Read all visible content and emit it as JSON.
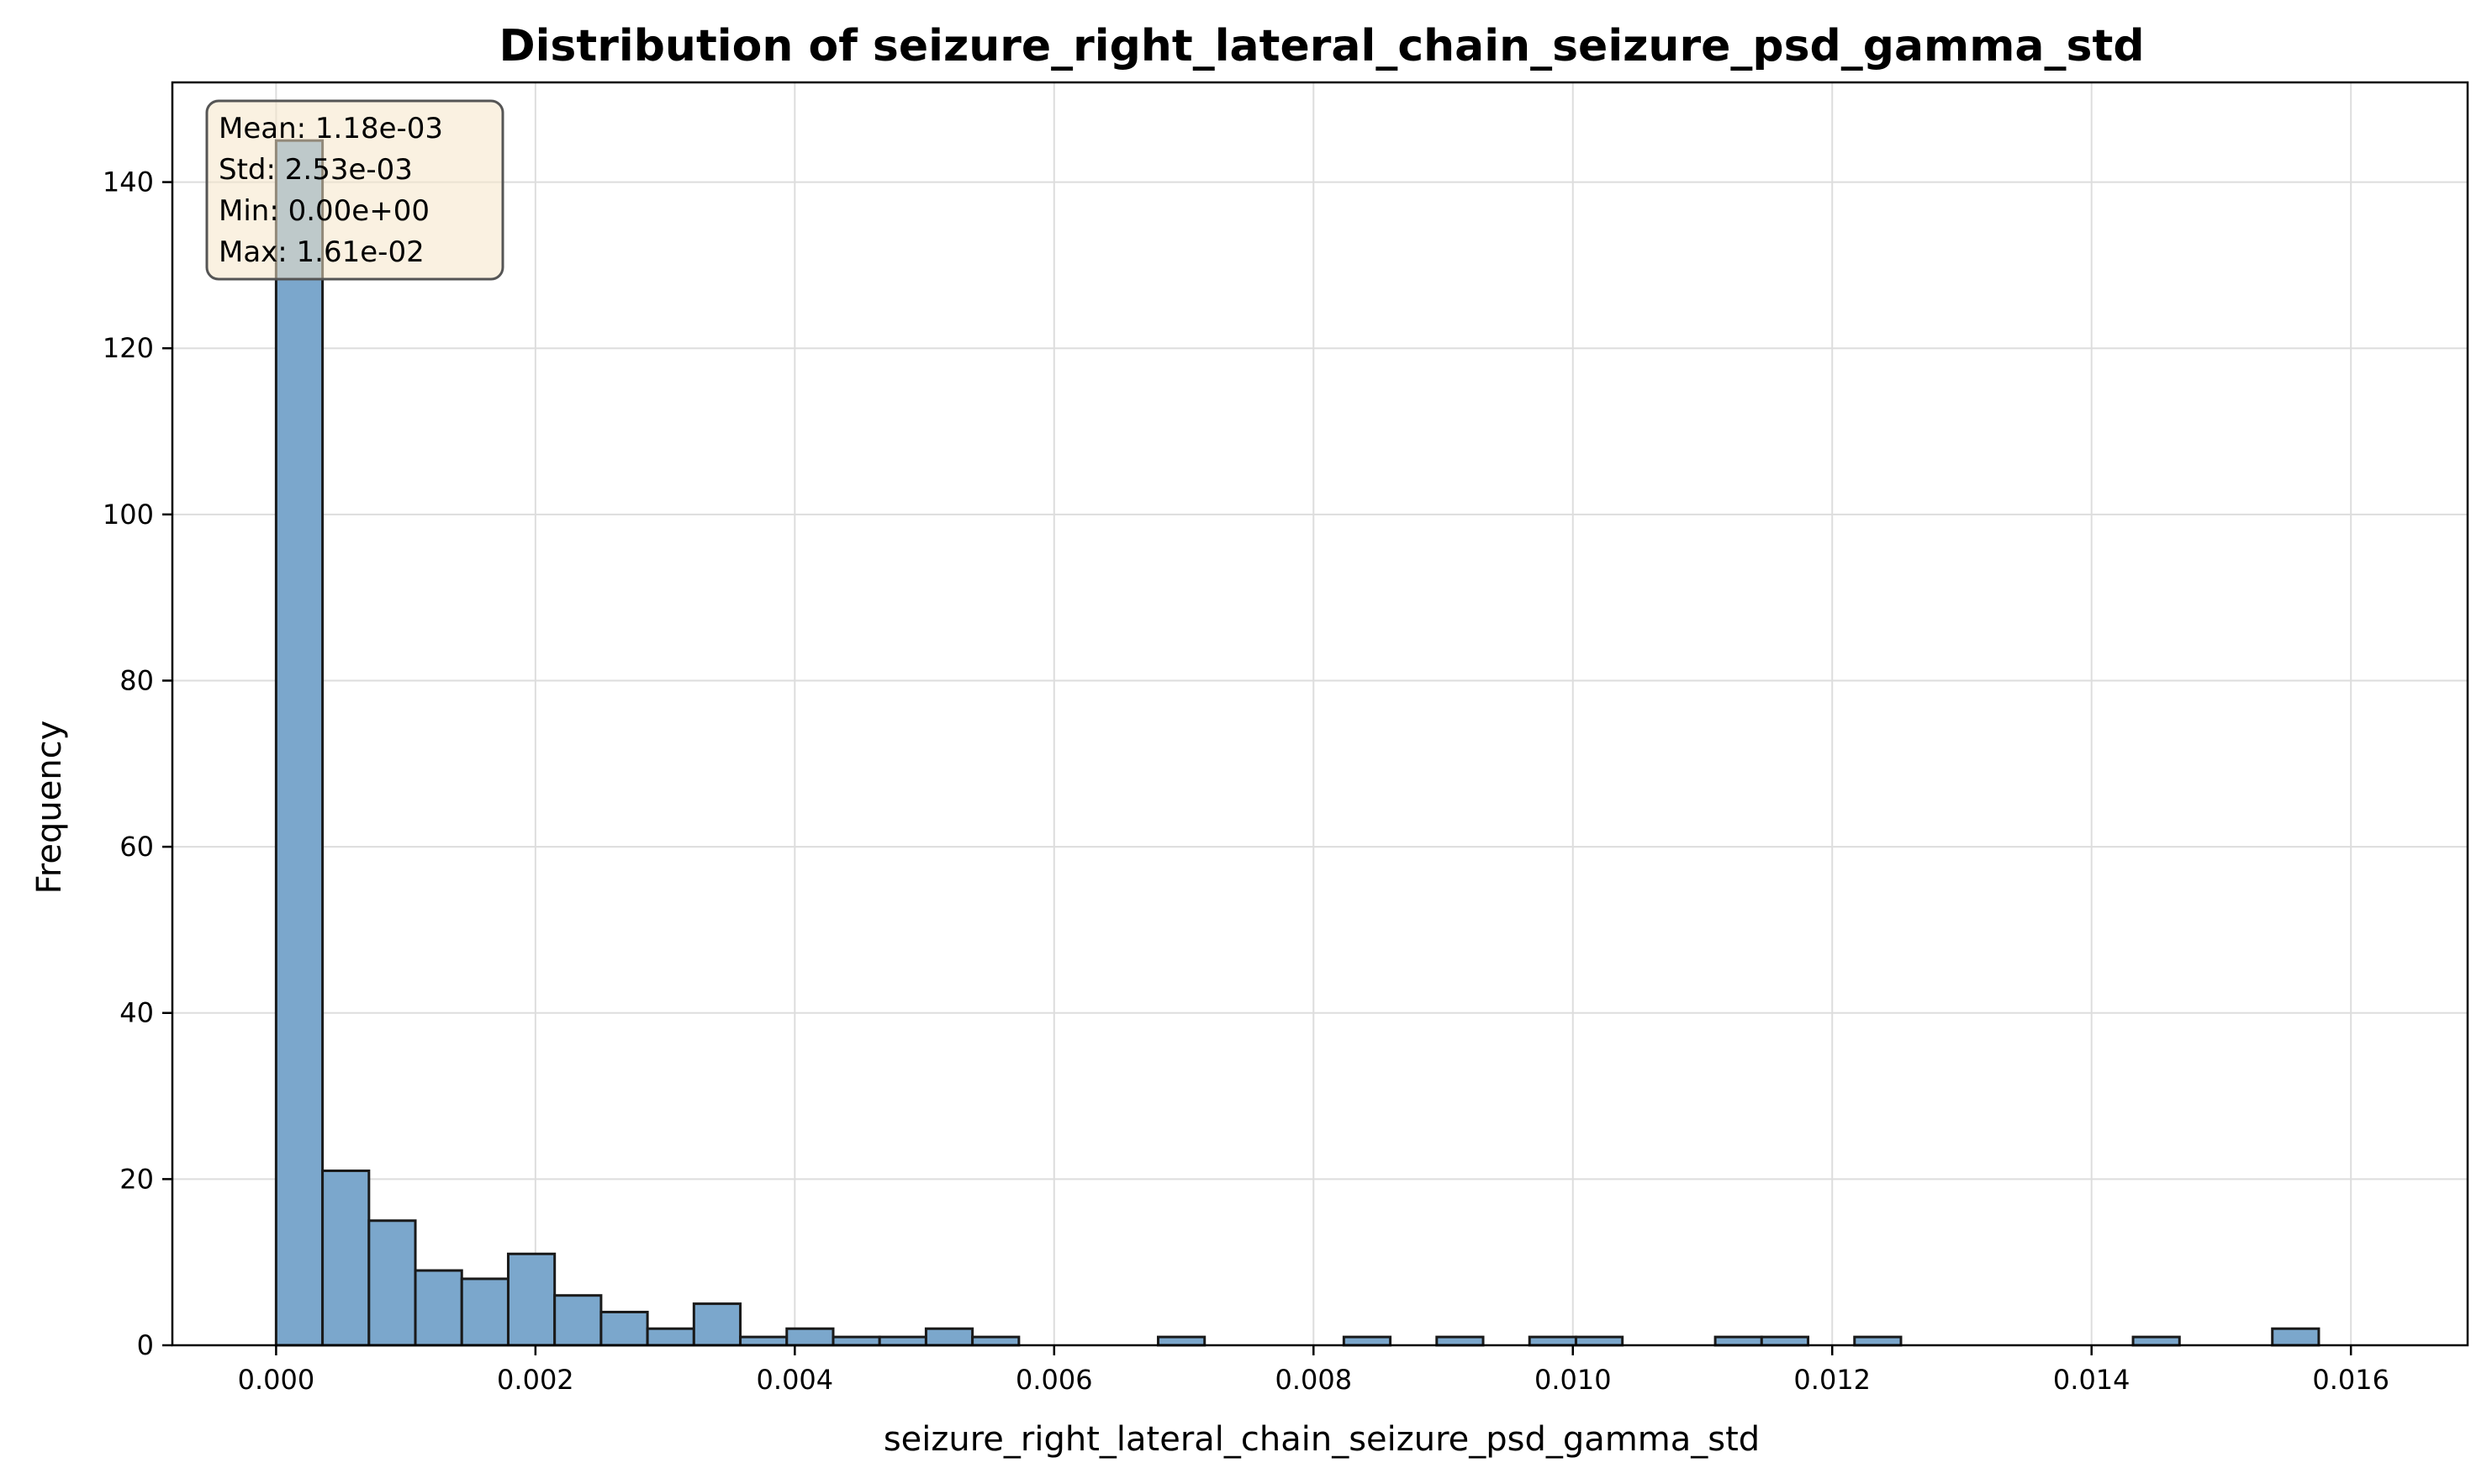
{
  "chart_data": {
    "type": "bar",
    "title": "Distribution of seizure_right_lateral_chain_seizure_psd_gamma_std",
    "xlabel": "seizure_right_lateral_chain_seizure_psd_gamma_std",
    "ylabel": "Frequency",
    "xlim": [
      -0.0008,
      0.0169
    ],
    "ylim": [
      0,
      152
    ],
    "xticks": [
      0.0,
      0.002,
      0.004,
      0.006,
      0.008,
      0.01,
      0.012,
      0.014,
      0.016
    ],
    "xtick_labels": [
      "0.000",
      "0.002",
      "0.004",
      "0.006",
      "0.008",
      "0.010",
      "0.012",
      "0.014",
      "0.016"
    ],
    "yticks": [
      0,
      20,
      40,
      60,
      80,
      100,
      120,
      140
    ],
    "ytick_labels": [
      "0",
      "20",
      "40",
      "60",
      "80",
      "100",
      "120",
      "140"
    ],
    "grid": true,
    "bar_color": "#7ba7cc",
    "edge_color": "#1a1a1a",
    "bin_start": 0.0,
    "bin_width": 0.000358,
    "counts": [
      145,
      21,
      15,
      9,
      8,
      11,
      6,
      4,
      2,
      5,
      1,
      2,
      1,
      1,
      2,
      1,
      0,
      0,
      0,
      1,
      0,
      0,
      0,
      1,
      0,
      1,
      0,
      1,
      1,
      0,
      0,
      1,
      1,
      0,
      1,
      0,
      0,
      0,
      0,
      0,
      1,
      0,
      0,
      2
    ],
    "stats_box": {
      "lines": [
        "Mean: 1.18e-03",
        "Std: 2.53e-03",
        "Min: 0.00e+00",
        "Max: 1.61e-02"
      ],
      "placement": "top-left",
      "background": "#f5e6c8"
    }
  }
}
